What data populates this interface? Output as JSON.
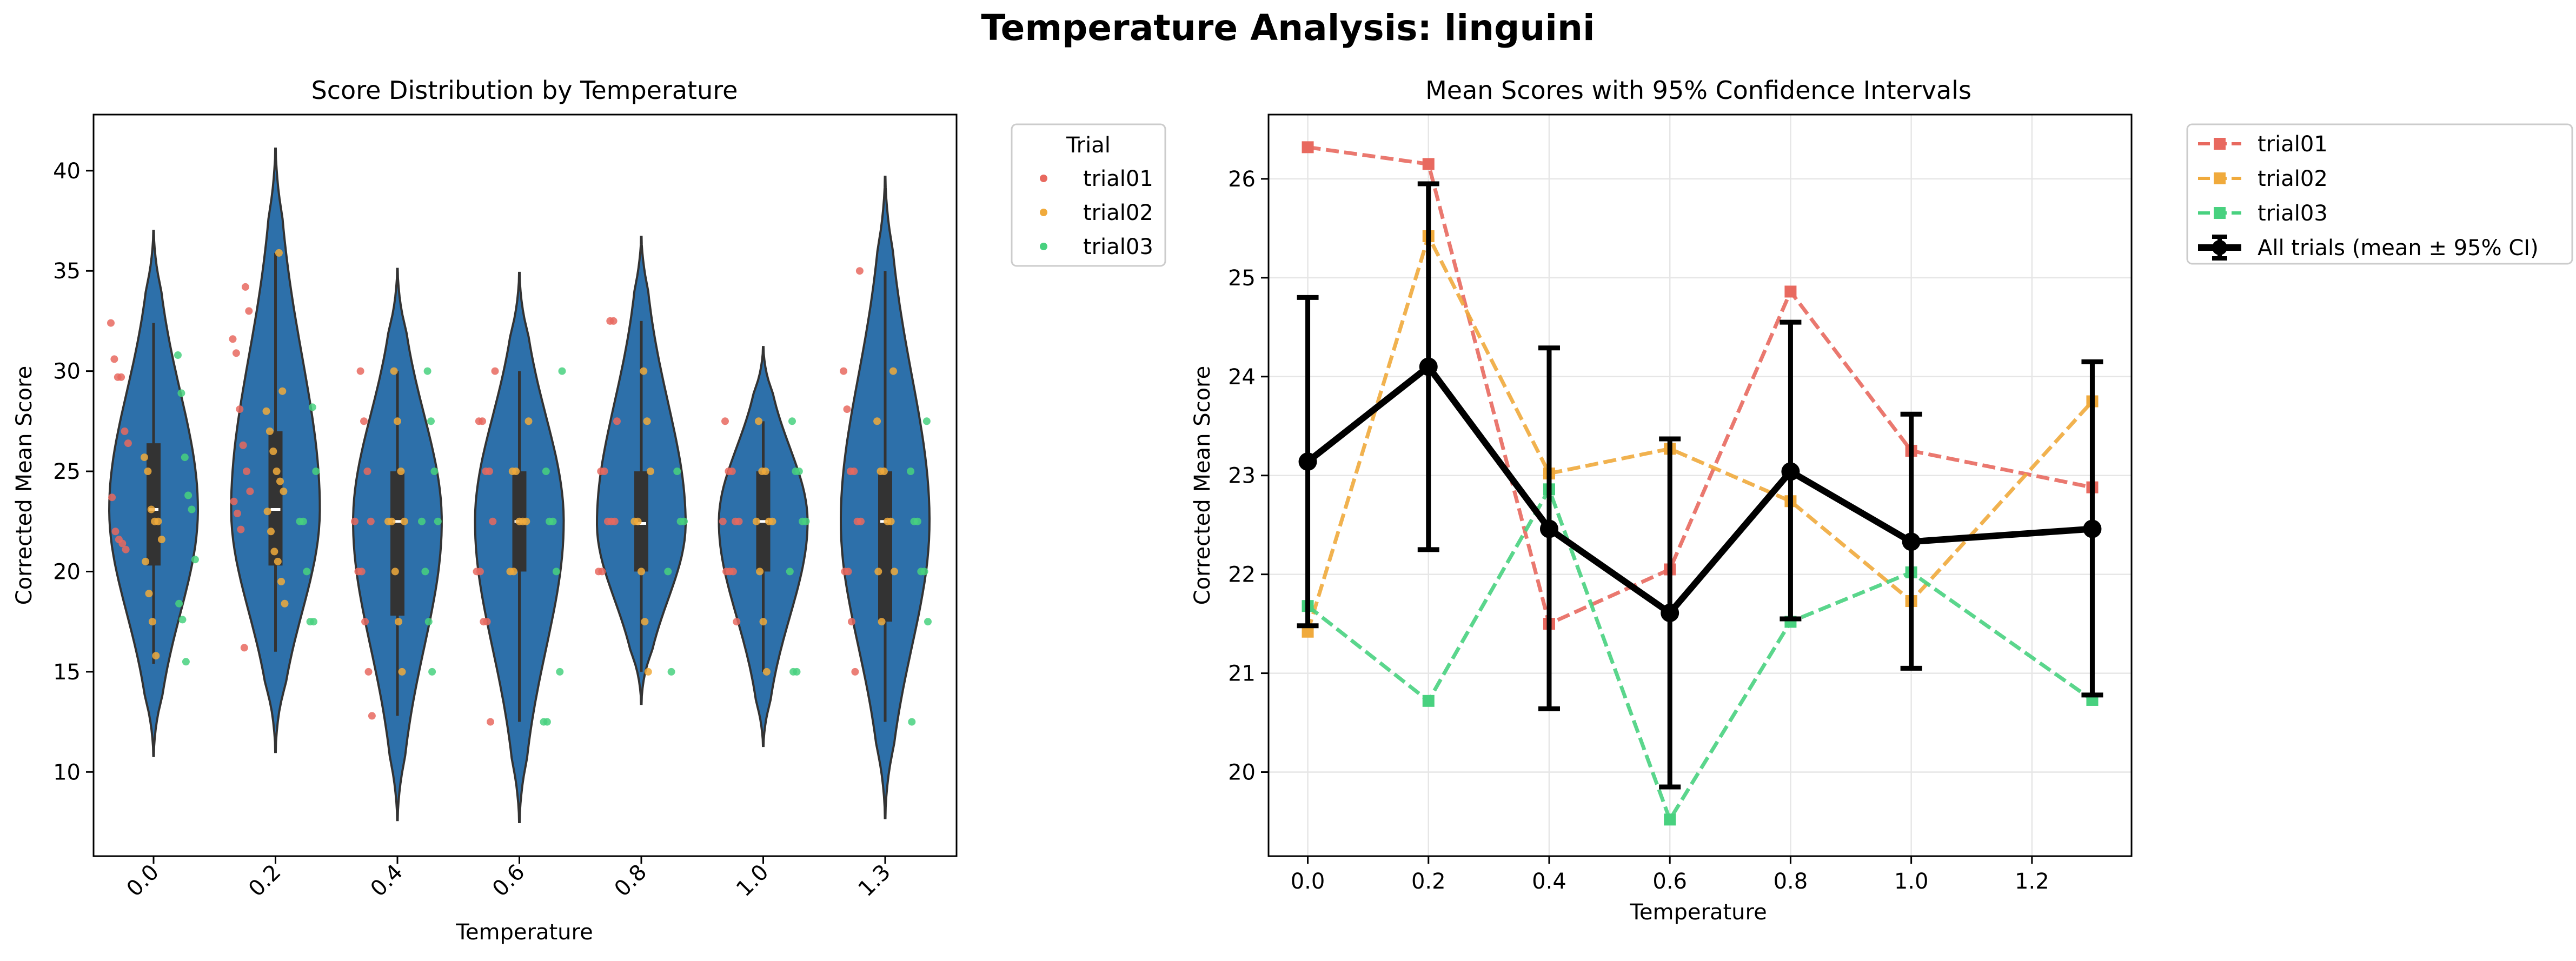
{
  "figure_title": "Temperature Analysis: linguini",
  "colors": {
    "trial01": "#e8695f",
    "trial02": "#f0aa3c",
    "trial03": "#48d17f",
    "violin": "#2d70aa",
    "all": "#000000"
  },
  "chart_data": [
    {
      "type": "violin",
      "title": "Score Distribution by Temperature",
      "xlabel": "Temperature",
      "ylabel": "Corrected Mean Score",
      "categories": [
        "0.0",
        "0.2",
        "0.4",
        "0.6",
        "0.8",
        "1.0",
        "1.3"
      ],
      "yticks": [
        10,
        15,
        20,
        25,
        30,
        35,
        40
      ],
      "ylim": [
        5.8,
        42.8
      ],
      "legend": {
        "title": "Trial",
        "entries": [
          "trial01",
          "trial02",
          "trial03"
        ],
        "position": "outside-right"
      },
      "violins": [
        {
          "category": "0.0",
          "min": 10.8,
          "max": 37.0,
          "q1": 20.3,
          "median": 23.1,
          "q3": 26.4,
          "whisker_low": 15.4,
          "whisker_high": 32.4
        },
        {
          "category": "0.2",
          "min": 11.0,
          "max": 41.1,
          "q1": 20.3,
          "median": 23.1,
          "q3": 27.0,
          "whisker_low": 16.0,
          "whisker_high": 35.9
        },
        {
          "category": "0.4",
          "min": 7.6,
          "max": 35.1,
          "q1": 17.8,
          "median": 22.5,
          "q3": 25.0,
          "whisker_low": 12.8,
          "whisker_high": 30.0
        },
        {
          "category": "0.6",
          "min": 7.5,
          "max": 34.9,
          "q1": 20.0,
          "median": 22.5,
          "q3": 25.0,
          "whisker_low": 12.5,
          "whisker_high": 30.0
        },
        {
          "category": "0.8",
          "min": 13.4,
          "max": 36.7,
          "q1": 20.0,
          "median": 22.4,
          "q3": 25.0,
          "whisker_low": 15.0,
          "whisker_high": 32.5
        },
        {
          "category": "1.0",
          "min": 11.3,
          "max": 31.2,
          "q1": 20.0,
          "median": 22.5,
          "q3": 25.0,
          "whisker_low": 15.0,
          "whisker_high": 27.5
        },
        {
          "category": "1.3",
          "min": 7.7,
          "max": 39.7,
          "q1": 17.5,
          "median": 22.5,
          "q3": 25.0,
          "whisker_low": 12.5,
          "whisker_high": 35.0
        }
      ],
      "points": {
        "trial01": [
          [
            32.4,
            30.6,
            29.7,
            29.7,
            27.0,
            26.4,
            23.7,
            22.0,
            21.6,
            21.4,
            21.1
          ],
          [
            34.2,
            33.0,
            31.6,
            30.9,
            28.1,
            26.3,
            25.0,
            24.0,
            23.5,
            22.9,
            22.1,
            16.2
          ],
          [
            30.0,
            27.5,
            25.0,
            22.5,
            22.5,
            20.0,
            20.0,
            17.5,
            15.0,
            12.8
          ],
          [
            30.0,
            27.5,
            27.5,
            25.0,
            25.0,
            22.5,
            20.0,
            20.0,
            17.5,
            17.5,
            12.5
          ],
          [
            32.5,
            32.5,
            27.5,
            25.0,
            25.0,
            22.5,
            22.5,
            22.5,
            20.0,
            20.0
          ],
          [
            27.5,
            25.0,
            25.0,
            22.5,
            22.5,
            22.5,
            20.0,
            20.0,
            20.0,
            17.5
          ],
          [
            35.0,
            30.0,
            28.1,
            25.0,
            25.0,
            22.5,
            22.5,
            20.0,
            20.0,
            17.5,
            15.0
          ]
        ],
        "trial02": [
          [
            25.7,
            25.0,
            23.1,
            22.5,
            22.5,
            21.6,
            20.5,
            18.9,
            17.5,
            15.8
          ],
          [
            35.9,
            29.0,
            28.0,
            27.0,
            26.0,
            25.0,
            24.5,
            24.0,
            23.0,
            22.0,
            21.0,
            20.5,
            19.5,
            18.4
          ],
          [
            30.0,
            27.5,
            25.0,
            22.5,
            22.5,
            22.5,
            20.0,
            17.5,
            15.0
          ],
          [
            27.5,
            25.0,
            25.0,
            22.5,
            22.5,
            22.5,
            20.0,
            20.0
          ],
          [
            30.0,
            27.5,
            25.0,
            22.5,
            22.5,
            20.0,
            17.5,
            15.0
          ],
          [
            27.5,
            25.0,
            25.0,
            22.5,
            22.5,
            22.5,
            20.0,
            17.5,
            15.0
          ],
          [
            30.0,
            27.5,
            25.0,
            25.0,
            22.5,
            22.5,
            20.0,
            20.0,
            17.5
          ]
        ],
        "trial03": [
          [
            30.8,
            28.9,
            25.7,
            23.8,
            23.1,
            20.6,
            18.4,
            17.6,
            15.5
          ],
          [
            28.2,
            25.0,
            22.5,
            22.5,
            20.0,
            17.5,
            17.5
          ],
          [
            30.0,
            27.5,
            25.0,
            22.5,
            22.5,
            20.0,
            17.5,
            15.0
          ],
          [
            30.0,
            25.0,
            22.5,
            22.5,
            20.0,
            15.0,
            12.5,
            12.5
          ],
          [
            25.0,
            22.5,
            22.5,
            20.0,
            15.0
          ],
          [
            27.5,
            25.0,
            25.0,
            22.5,
            22.5,
            20.0,
            15.0,
            15.0
          ],
          [
            27.5,
            25.0,
            22.5,
            22.5,
            20.0,
            20.0,
            17.5,
            12.5
          ]
        ]
      }
    },
    {
      "type": "line",
      "title": "Mean Scores with 95% Confidence Intervals",
      "xlabel": "Temperature",
      "ylabel": "Corrected Mean Score",
      "x": [
        0.0,
        0.2,
        0.4,
        0.6,
        0.8,
        1.0,
        1.3
      ],
      "xticks": [
        0.0,
        0.2,
        0.4,
        0.6,
        0.8,
        1.0,
        1.2
      ],
      "xticklabels": [
        "0.0",
        "0.2",
        "0.4",
        "0.6",
        "0.8",
        "1.0",
        "1.2"
      ],
      "xlim": [
        -0.065,
        1.365
      ],
      "yticks": [
        20,
        21,
        22,
        23,
        24,
        25,
        26
      ],
      "ylim": [
        19.15,
        26.65
      ],
      "grid": true,
      "legend": {
        "position": "outside-right",
        "entries": [
          "trial01",
          "trial02",
          "trial03",
          "All trials (mean ± 95% CI)"
        ]
      },
      "series": [
        {
          "name": "trial01",
          "style": "dashed",
          "marker": "square",
          "values": [
            26.32,
            26.15,
            21.5,
            22.05,
            24.86,
            23.25,
            22.88
          ]
        },
        {
          "name": "trial02",
          "style": "dashed",
          "marker": "square",
          "values": [
            21.42,
            25.42,
            23.02,
            23.27,
            22.74,
            21.73,
            23.75
          ]
        },
        {
          "name": "trial03",
          "style": "dashed",
          "marker": "square",
          "values": [
            21.68,
            20.72,
            22.86,
            19.52,
            21.52,
            22.02,
            20.73
          ]
        },
        {
          "name": "All trials (mean ± 95% CI)",
          "style": "solid",
          "marker": "circle",
          "values": [
            23.14,
            24.1,
            22.46,
            21.61,
            23.04,
            22.33,
            22.46
          ],
          "ci_low": [
            21.48,
            22.25,
            20.64,
            19.85,
            21.55,
            21.05,
            20.78
          ],
          "ci_high": [
            24.8,
            25.95,
            24.29,
            23.37,
            24.55,
            23.62,
            24.15
          ]
        }
      ]
    }
  ]
}
